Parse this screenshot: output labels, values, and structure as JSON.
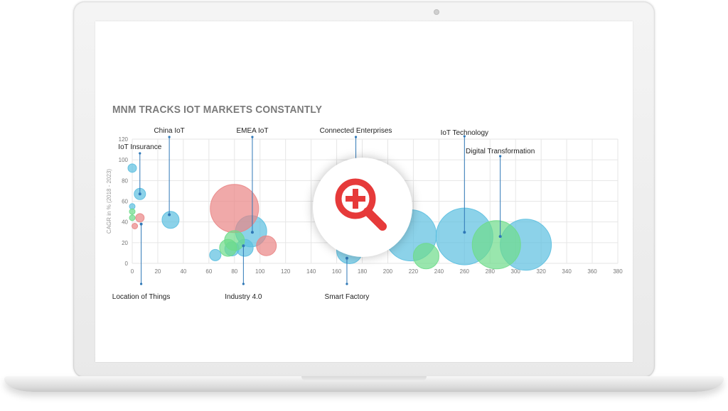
{
  "chart_data": {
    "type": "scatter",
    "title": "MNM TRACKS IOT MARKETS CONSTANTLY",
    "ylabel": "CAGR in % (2018 - 2023)",
    "xlabel": "",
    "xlim": [
      0,
      380
    ],
    "ylim": [
      0,
      120
    ],
    "x_ticks": [
      "0",
      "20",
      "40",
      "60",
      "80",
      "100",
      "120",
      "140",
      "160",
      "180",
      "200",
      "220",
      "240",
      "260",
      "280",
      "300",
      "320",
      "340",
      "360",
      "380"
    ],
    "y_ticks": [
      "0",
      "20",
      "40",
      "60",
      "80",
      "100",
      "120"
    ],
    "grid": true,
    "series": [
      {
        "color": "#5bbfe0",
        "points": [
          {
            "x": 0,
            "y": 92,
            "size": 3
          },
          {
            "x": 6,
            "y": 67,
            "size": 4
          },
          {
            "x": 30,
            "y": 42,
            "size": 6
          },
          {
            "x": 0,
            "y": 55,
            "size": 2
          },
          {
            "x": 65,
            "y": 8,
            "size": 4
          },
          {
            "x": 78,
            "y": 14,
            "size": 5
          },
          {
            "x": 93,
            "y": 31,
            "size": 11
          },
          {
            "x": 88,
            "y": 15,
            "size": 6
          },
          {
            "x": 170,
            "y": 12,
            "size": 9
          },
          {
            "x": 218,
            "y": 27,
            "size": 18
          },
          {
            "x": 260,
            "y": 26,
            "size": 20
          },
          {
            "x": 308,
            "y": 18,
            "size": 18
          }
        ]
      },
      {
        "color": "#e98585",
        "points": [
          {
            "x": 80,
            "y": 53,
            "size": 17
          },
          {
            "x": 105,
            "y": 17,
            "size": 7
          },
          {
            "x": 6,
            "y": 44,
            "size": 3
          },
          {
            "x": 2,
            "y": 36,
            "size": 2
          }
        ]
      },
      {
        "color": "#6edc8a",
        "points": [
          {
            "x": 0,
            "y": 50,
            "size": 2
          },
          {
            "x": 0,
            "y": 44,
            "size": 2
          },
          {
            "x": 80,
            "y": 22,
            "size": 7
          },
          {
            "x": 75,
            "y": 15,
            "size": 6
          },
          {
            "x": 230,
            "y": 7,
            "size": 9
          },
          {
            "x": 285,
            "y": 18,
            "size": 17
          }
        ]
      }
    ],
    "annotations": [
      {
        "label": "IoT Insurance",
        "x": 6,
        "y": 67,
        "dir": "up"
      },
      {
        "label": "China IoT",
        "x": 29,
        "y": 47,
        "dir": "up"
      },
      {
        "label": "EMEA IoT",
        "x": 94,
        "y": 30,
        "dir": "up"
      },
      {
        "label": "Connected Enterprises",
        "x": 175,
        "y": 95,
        "dir": "up"
      },
      {
        "label": "IoT Technology",
        "x": 260,
        "y": 30,
        "dir": "up"
      },
      {
        "label": "Digital Transformation",
        "x": 288,
        "y": 26,
        "dir": "up"
      },
      {
        "label": "Location of Things",
        "x": 7,
        "y": 38,
        "dir": "down"
      },
      {
        "label": "Industry 4.0",
        "x": 87,
        "y": 17,
        "dir": "down"
      },
      {
        "label": "Smart Factory",
        "x": 168,
        "y": 5,
        "dir": "down"
      }
    ],
    "colors": {
      "accent_red": "#e63a3a",
      "annotation_line": "#2f78b7",
      "grid": "#e6e6e6"
    }
  },
  "zoom": {
    "icon": "zoom-in-icon"
  }
}
